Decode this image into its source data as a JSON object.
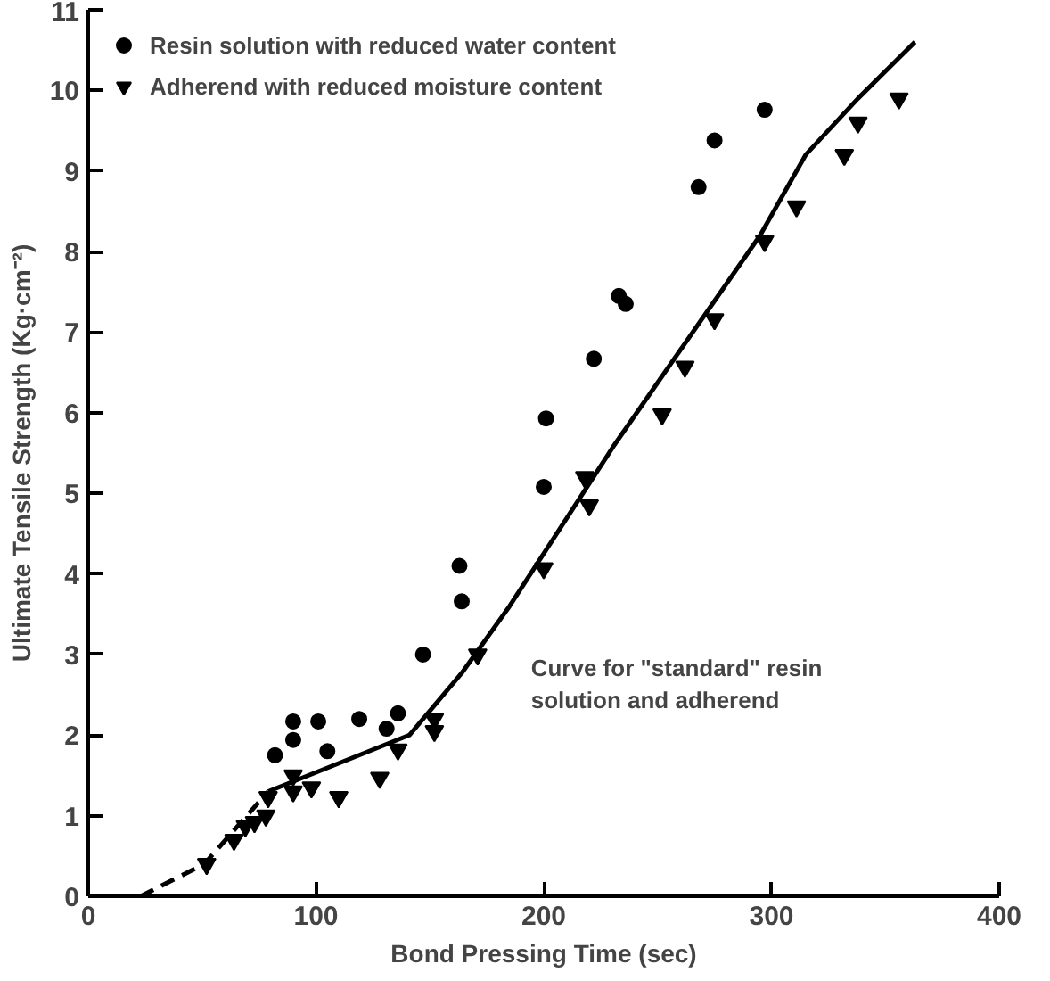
{
  "chart_data": {
    "type": "scatter",
    "xlabel": "Bond Pressing Time (sec)",
    "ylabel": "Ultimate Tensile Strength (Kg·cm⁻²)",
    "xlim": [
      0,
      400
    ],
    "ylim": [
      0,
      11
    ],
    "xticks": [
      0,
      100,
      200,
      300,
      400
    ],
    "yticks": [
      0,
      1,
      2,
      3,
      4,
      5,
      6,
      7,
      8,
      9,
      10,
      11
    ],
    "grid": false,
    "legend": "top left",
    "series": [
      {
        "name": "Resin solution with reduced water content",
        "marker": "circle",
        "color": "#000000",
        "x": [
          82,
          90,
          90,
          101,
          105,
          119,
          131,
          136,
          147,
          163,
          164,
          200,
          201,
          222,
          233,
          236,
          268,
          275,
          297
        ],
        "values": [
          1.75,
          2.17,
          1.94,
          2.17,
          1.8,
          2.2,
          2.08,
          2.27,
          3.0,
          4.1,
          3.66,
          5.08,
          5.93,
          6.67,
          7.45,
          7.35,
          8.8,
          9.38,
          9.76
        ]
      },
      {
        "name": "Adherend with reduced moisture content",
        "marker": "triangle",
        "color": "#000000",
        "x": [
          52,
          64,
          69,
          73,
          78,
          79,
          90,
          90,
          98,
          110,
          128,
          136,
          152,
          152,
          171,
          200,
          218,
          220,
          252,
          262,
          275,
          297,
          311,
          332,
          338,
          356
        ],
        "values": [
          0.4,
          0.7,
          0.87,
          0.92,
          1.0,
          1.23,
          1.5,
          1.3,
          1.35,
          1.23,
          1.47,
          1.82,
          2.05,
          2.2,
          3.0,
          4.07,
          5.2,
          4.85,
          5.98,
          6.57,
          7.16,
          8.13,
          8.56,
          9.2,
          9.6,
          9.9
        ]
      },
      {
        "type": "line",
        "line_style": "dashed",
        "color": "#000000",
        "x": [
          23,
          51,
          79
        ],
        "values": [
          0,
          0.4,
          1.3
        ]
      },
      {
        "name": "Curve for \"standard\" resin solution and adherend",
        "type": "line",
        "line_style": "solid",
        "color": "#000000",
        "x": [
          79,
          141,
          164,
          185,
          231,
          295,
          315,
          338,
          363
        ],
        "values": [
          1.3,
          2.0,
          2.77,
          3.6,
          5.6,
          8.2,
          9.2,
          9.9,
          10.6
        ]
      }
    ]
  }
}
